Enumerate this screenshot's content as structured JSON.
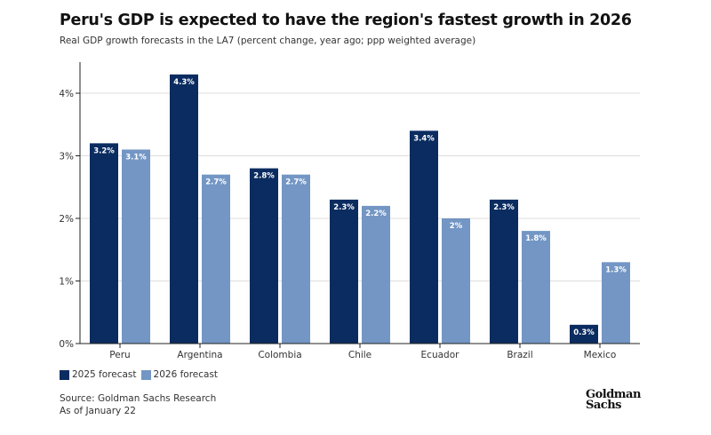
{
  "header": {
    "title": "Peru's GDP is expected to have the region's fastest growth in 2026",
    "subtitle": "Real GDP growth forecasts in the LA7 (percent change, year ago; ppp weighted average)"
  },
  "colors": {
    "series_2025": "#0b2c60",
    "series_2026": "#7396c4",
    "grid": "#dddddd",
    "axis": "#222222"
  },
  "chart_data": {
    "type": "bar",
    "title": "Peru's GDP is expected to have the region's fastest growth in 2026",
    "subtitle": "Real GDP growth forecasts in the LA7 (percent change, year ago; ppp weighted average)",
    "xlabel": "",
    "ylabel": "",
    "categories": [
      "Peru",
      "Argentina",
      "Colombia",
      "Chile",
      "Ecuador",
      "Brazil",
      "Mexico"
    ],
    "series": [
      {
        "name": "2025 forecast",
        "values": [
          3.2,
          4.3,
          2.8,
          2.3,
          3.4,
          2.3,
          0.3
        ],
        "labels": [
          "3.2%",
          "4.3%",
          "2.8%",
          "2.3%",
          "3.4%",
          "2.3%",
          "0.3%"
        ]
      },
      {
        "name": "2026 forecast",
        "values": [
          3.1,
          2.7,
          2.7,
          2.2,
          2.0,
          1.8,
          1.3
        ],
        "labels": [
          "3.1%",
          "2.7%",
          "2.7%",
          "2.2%",
          "2%",
          "1.8%",
          "1.3%"
        ]
      }
    ],
    "ylim": [
      0,
      4.4
    ],
    "yticks": [
      0,
      1,
      2,
      3,
      4
    ],
    "ytick_labels": [
      "0%",
      "1%",
      "2%",
      "3%",
      "4%"
    ],
    "grid": true,
    "legend_position": "bottom-left"
  },
  "legend": {
    "items": [
      "2025 forecast",
      "2026 forecast"
    ]
  },
  "footer": {
    "source": "Source: Goldman Sachs Research",
    "date": "As of January 22",
    "logo_line1": "Goldman",
    "logo_line2": "Sachs"
  }
}
